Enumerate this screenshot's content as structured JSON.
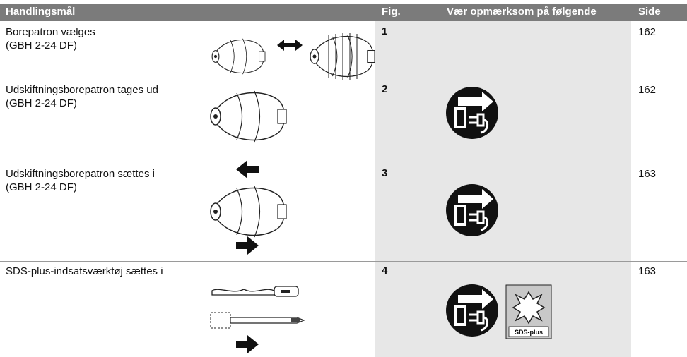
{
  "header": {
    "columns": [
      "Handlingsmål",
      "Fig.",
      "Vær opmærksom på følgende",
      "Side"
    ]
  },
  "table": {
    "rows": [
      {
        "action": "Borepatron vælges",
        "model": "(GBH 2-24 DF)",
        "fig": 1,
        "page": 162
      },
      {
        "action": "Udskiftningsborepatron tages ud",
        "model": "(GBH 2-24 DF)",
        "fig": 2,
        "page": 162
      },
      {
        "action": "Udskiftningsborepatron sættes i",
        "model": "(GBH 2-24 DF)",
        "fig": 3,
        "page": 163
      },
      {
        "action": "SDS-plus-indsatsværktøj sættes i",
        "fig": 4,
        "page": 163
      }
    ]
  },
  "sds_label": "SDS-plus"
}
